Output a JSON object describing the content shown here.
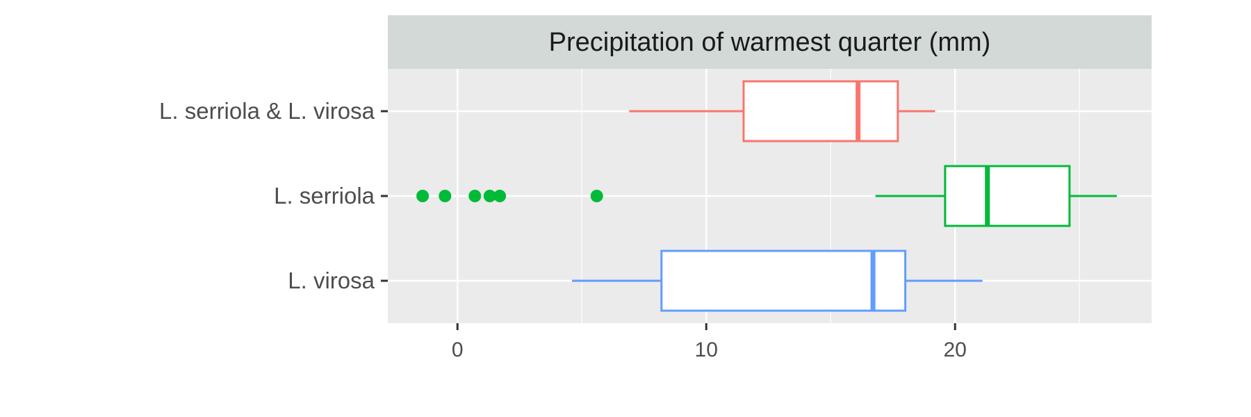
{
  "chart_data": {
    "type": "boxplot",
    "title": "",
    "panel_title": "Precipitation of warmest quarter (mm)",
    "xlabel": "",
    "ylabel": "",
    "xlim": [
      -2.8,
      27.9
    ],
    "x_ticks": [
      0,
      10,
      20
    ],
    "x_minor_ticks": [
      5,
      15,
      25
    ],
    "grid": true,
    "legend": "none",
    "orientation": "horizontal",
    "categories": [
      "L. serriola & L. virosa",
      "L. serriola",
      "L. virosa"
    ],
    "series": [
      {
        "category": "L. serriola & L. virosa",
        "color": "#F8766D",
        "whisker_low": 6.9,
        "q1": 11.5,
        "median": 16.1,
        "q3": 17.7,
        "whisker_high": 19.2,
        "outliers": []
      },
      {
        "category": "L. serriola",
        "color": "#00BA38",
        "whisker_low": 16.8,
        "q1": 19.6,
        "median": 21.3,
        "q3": 24.6,
        "whisker_high": 26.5,
        "outliers": [
          -1.4,
          -0.5,
          0.7,
          1.3,
          1.7,
          5.6
        ]
      },
      {
        "category": "L. virosa",
        "color": "#619CFF",
        "whisker_low": 4.6,
        "q1": 8.2,
        "median": 16.7,
        "q3": 18.0,
        "whisker_high": 21.1,
        "outliers": []
      }
    ]
  }
}
